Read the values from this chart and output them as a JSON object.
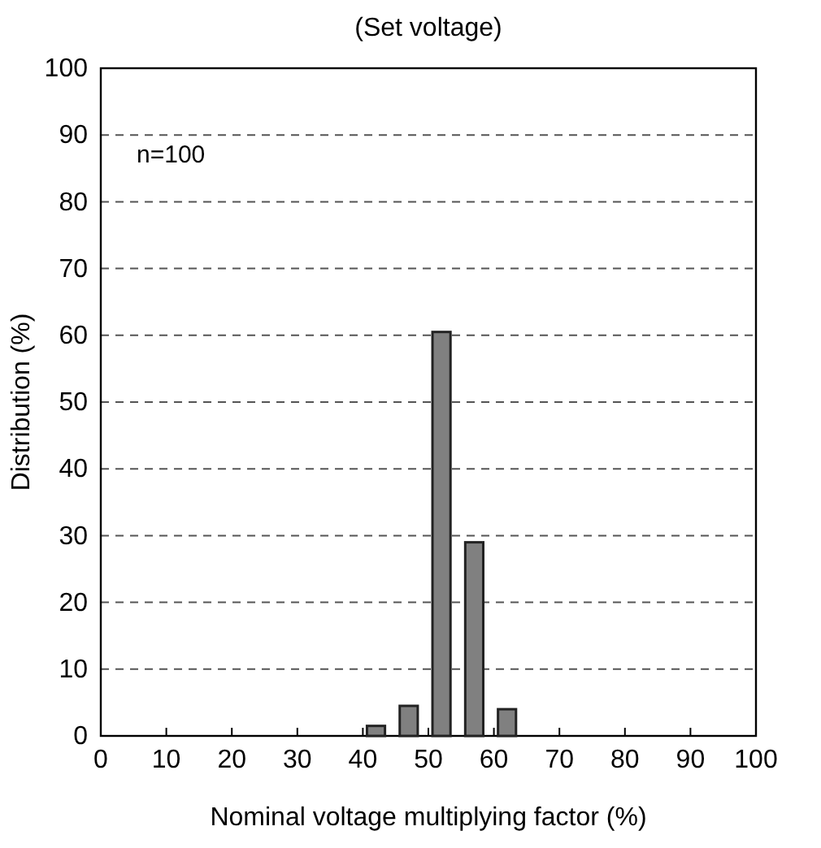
{
  "chart_data": {
    "type": "bar",
    "title": "(Set voltage)",
    "xlabel": "Nominal voltage multiplying factor (%)",
    "ylabel": "Distribution (%)",
    "x": [
      42,
      47,
      52,
      57,
      62
    ],
    "series": [
      {
        "color": "#808080",
        "values": [
          1.5,
          4.5,
          60.5,
          29,
          4
        ]
      }
    ],
    "xlim": [
      0,
      100
    ],
    "xticks": [
      0,
      10,
      20,
      30,
      40,
      50,
      60,
      70,
      80,
      90,
      100
    ],
    "ylim": [
      0,
      100
    ],
    "yticks": [
      0,
      10,
      20,
      30,
      40,
      50,
      60,
      70,
      80,
      90,
      100
    ],
    "grid": "y",
    "annotations": [
      "n=100"
    ]
  }
}
